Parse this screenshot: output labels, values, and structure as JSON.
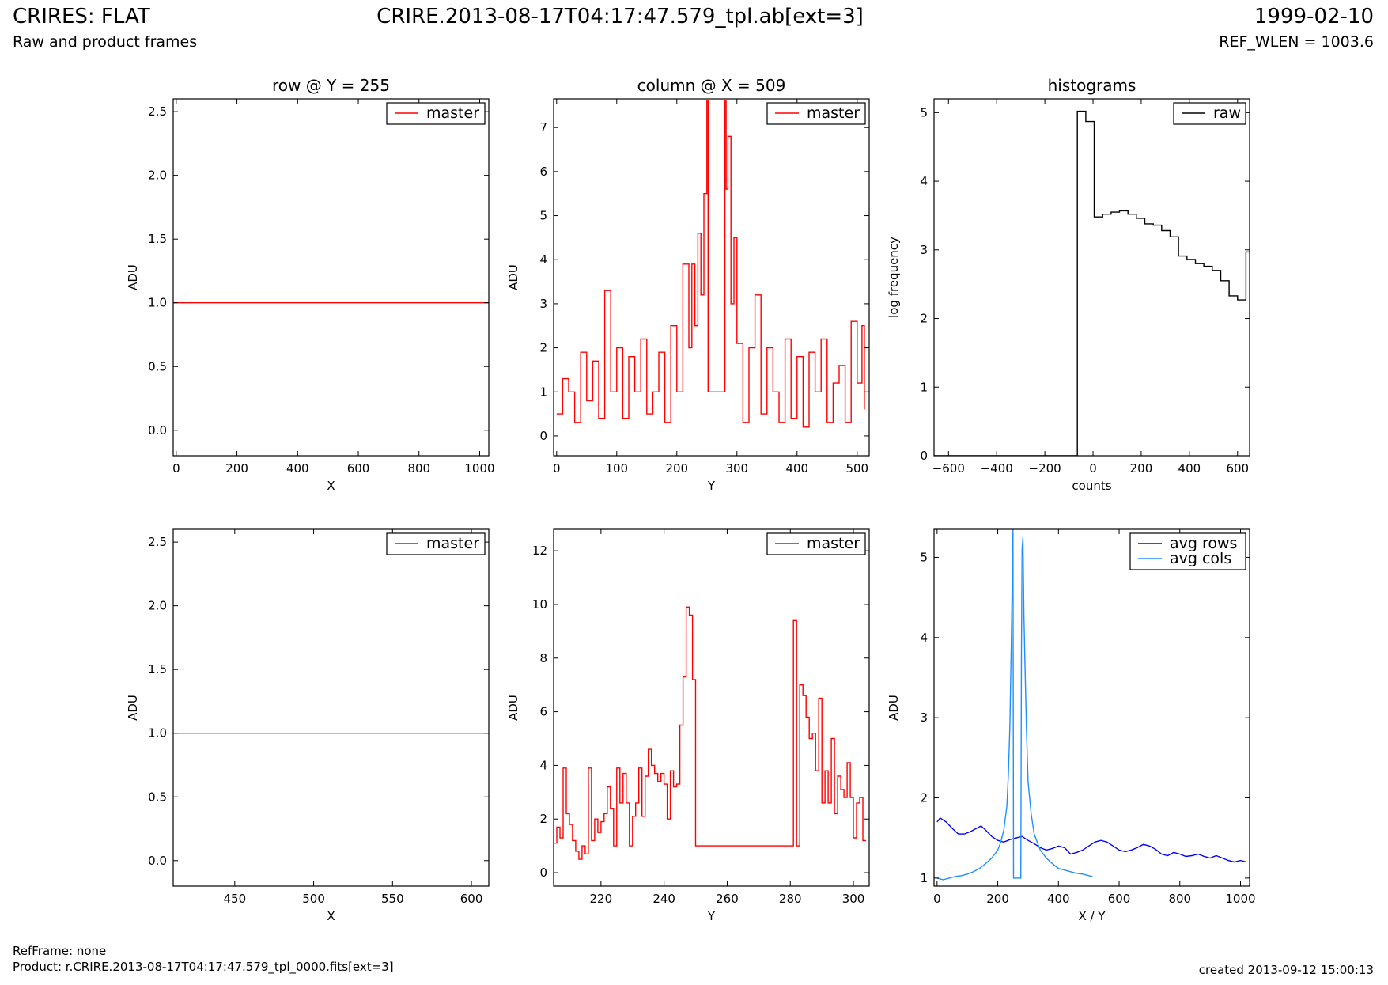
{
  "header": {
    "title": "CRIRES: FLAT",
    "subtitle": "Raw and product frames",
    "file": "CRIRE.2013-08-17T04:17:47.579_tpl.ab[ext=3]",
    "date": "1999-02-10",
    "ref_wlen": "REF_WLEN = 1003.6"
  },
  "footer": {
    "refframe": "RefFrame: none",
    "product": "Product: r.CRIRE.2013-08-17T04:17:47.579_tpl_0000.fits[ext=3]",
    "created": "created 2013-09-12 15:00:13"
  },
  "colors": {
    "master": "#ff0000",
    "raw": "#000000",
    "avg_rows": "#0000ff",
    "avg_cols": "#1e90ff"
  },
  "chart_data": [
    {
      "type": "line",
      "title": "row @ Y = 255",
      "xlabel": "X",
      "ylabel": "ADU",
      "xlim": [
        -10,
        1030
      ],
      "ylim": [
        -0.2,
        2.6
      ],
      "xticks": [
        0,
        200,
        400,
        600,
        800,
        1000
      ],
      "yticks": [
        0.0,
        0.5,
        1.0,
        1.5,
        2.0,
        2.5
      ],
      "ytick_labels": [
        "0.0",
        "0.5",
        "1.0",
        "1.5",
        "2.0",
        "2.5"
      ],
      "legend": "top-right",
      "series": [
        {
          "name": "master",
          "color": "#ff0000",
          "x": [
            -10,
            1030
          ],
          "y": [
            1.0,
            1.0
          ]
        }
      ]
    },
    {
      "type": "line",
      "title": "column @ X = 509",
      "xlabel": "Y",
      "ylabel": "ADU",
      "xlim": [
        -5,
        520
      ],
      "ylim": [
        -0.45,
        7.65
      ],
      "xticks": [
        0,
        100,
        200,
        300,
        400,
        500
      ],
      "yticks": [
        0,
        1,
        2,
        3,
        4,
        5,
        6,
        7
      ],
      "legend": "top-right",
      "series": [
        {
          "name": "master",
          "color": "#ff0000",
          "step": true,
          "x": [
            0,
            10,
            20,
            30,
            40,
            50,
            60,
            70,
            80,
            90,
            100,
            110,
            120,
            130,
            140,
            150,
            160,
            170,
            180,
            190,
            200,
            210,
            220,
            225,
            230,
            235,
            240,
            245,
            250,
            252,
            260,
            270,
            280,
            282,
            285,
            290,
            295,
            300,
            310,
            320,
            330,
            340,
            350,
            360,
            370,
            380,
            390,
            400,
            410,
            420,
            430,
            440,
            450,
            460,
            470,
            480,
            490,
            500,
            508,
            512
          ],
          "y": [
            0.5,
            1.3,
            1.0,
            0.3,
            1.9,
            0.8,
            1.7,
            0.4,
            3.3,
            1.0,
            2.0,
            0.4,
            1.8,
            1.0,
            2.2,
            0.5,
            1.0,
            1.9,
            0.3,
            2.5,
            1.0,
            3.9,
            2.0,
            3.9,
            2.5,
            4.6,
            3.2,
            5.5,
            7.6,
            1.0,
            1.0,
            1.0,
            7.6,
            5.6,
            6.8,
            3.0,
            4.5,
            2.1,
            0.3,
            2.0,
            3.2,
            0.5,
            2.0,
            1.0,
            0.3,
            2.2,
            0.4,
            1.8,
            0.2,
            1.9,
            1.0,
            2.2,
            0.3,
            1.2,
            1.6,
            0.3,
            2.6,
            1.2,
            2.5,
            0.6
          ]
        }
      ]
    },
    {
      "type": "line",
      "title": "histograms",
      "xlabel": "counts",
      "ylabel": "log frequency",
      "xlim": [
        -660,
        650
      ],
      "ylim": [
        0,
        5.2
      ],
      "xticks": [
        -600,
        -400,
        -200,
        0,
        200,
        400,
        600
      ],
      "xtick_labels": [
        "−600",
        "−400",
        "−200",
        "0",
        "200",
        "400",
        "600"
      ],
      "yticks": [
        0,
        1,
        2,
        3,
        4,
        5
      ],
      "legend": "top-right",
      "series": [
        {
          "name": "raw",
          "color": "#000000",
          "step": true,
          "x": [
            -660,
            -65,
            -65,
            -30,
            5,
            40,
            75,
            110,
            145,
            180,
            215,
            250,
            285,
            320,
            355,
            390,
            425,
            460,
            495,
            530,
            565,
            600,
            635,
            650
          ],
          "y": [
            0,
            0,
            5.02,
            4.87,
            3.48,
            3.52,
            3.55,
            3.57,
            3.52,
            3.46,
            3.38,
            3.36,
            3.28,
            3.19,
            2.91,
            2.86,
            2.8,
            2.76,
            2.7,
            2.55,
            2.33,
            2.27,
            2.97,
            2.97
          ]
        }
      ]
    },
    {
      "type": "line",
      "title": "",
      "xlabel": "X",
      "ylabel": "ADU",
      "xlim": [
        411,
        611
      ],
      "ylim": [
        -0.2,
        2.6
      ],
      "xticks": [
        450,
        500,
        550,
        600
      ],
      "yticks": [
        0.0,
        0.5,
        1.0,
        1.5,
        2.0,
        2.5
      ],
      "ytick_labels": [
        "0.0",
        "0.5",
        "1.0",
        "1.5",
        "2.0",
        "2.5"
      ],
      "legend": "top-right",
      "series": [
        {
          "name": "master",
          "color": "#ff0000",
          "x": [
            411,
            611
          ],
          "y": [
            1.0,
            1.0
          ]
        }
      ]
    },
    {
      "type": "line",
      "title": "",
      "xlabel": "Y",
      "ylabel": "ADU",
      "xlim": [
        205,
        305
      ],
      "ylim": [
        -0.5,
        12.8
      ],
      "xticks": [
        220,
        240,
        260,
        280,
        300
      ],
      "yticks": [
        0,
        2,
        4,
        6,
        8,
        10,
        12
      ],
      "legend": "top-right",
      "series": [
        {
          "name": "master",
          "color": "#ff0000",
          "step": true,
          "x": [
            205,
            206,
            207,
            208,
            209,
            210,
            211,
            212,
            213,
            214,
            215,
            216,
            217,
            218,
            219,
            220,
            221,
            222,
            223,
            224,
            225,
            226,
            227,
            228,
            229,
            230,
            231,
            232,
            233,
            234,
            235,
            236,
            237,
            238,
            239,
            240,
            241,
            242,
            243,
            244,
            245,
            246,
            247,
            248,
            249,
            250,
            251,
            252,
            281,
            282,
            283,
            284,
            285,
            286,
            287,
            288,
            289,
            290,
            291,
            292,
            293,
            294,
            295,
            296,
            297,
            298,
            299,
            300,
            301,
            302,
            303,
            304
          ],
          "y": [
            1.1,
            1.7,
            1.3,
            3.9,
            2.2,
            1.8,
            1.2,
            0.8,
            0.5,
            1.0,
            0.7,
            3.9,
            1.2,
            2.0,
            1.5,
            1.9,
            2.2,
            3.2,
            2.4,
            1.0,
            3.9,
            2.6,
            3.7,
            2.6,
            1.0,
            2.1,
            2.6,
            3.9,
            2.1,
            3.6,
            4.6,
            4.0,
            3.7,
            3.4,
            3.7,
            3.3,
            2.0,
            3.8,
            3.2,
            3.3,
            5.5,
            7.3,
            9.9,
            9.6,
            7.2,
            1.0,
            1.0,
            1.0,
            9.4,
            1.0,
            7.0,
            6.6,
            5.8,
            5.0,
            5.2,
            3.8,
            6.5,
            2.6,
            3.8,
            2.6,
            5.0,
            2.2,
            3.6,
            3.1,
            2.8,
            4.1,
            2.8,
            1.3,
            2.6,
            2.8,
            1.2,
            1.2
          ]
        }
      ]
    },
    {
      "type": "line",
      "title": "",
      "xlabel": "X / Y",
      "ylabel": "ADU",
      "xlim": [
        -10,
        1030
      ],
      "ylim": [
        0.9,
        5.35
      ],
      "xticks": [
        0,
        200,
        400,
        600,
        800,
        1000
      ],
      "yticks": [
        1,
        2,
        3,
        4,
        5
      ],
      "legend": "top-right",
      "series": [
        {
          "name": "avg rows",
          "color": "#0000ff",
          "x": [
            0,
            10,
            30,
            50,
            70,
            90,
            110,
            130,
            145,
            160,
            180,
            200,
            220,
            240,
            260,
            280,
            300,
            320,
            340,
            360,
            380,
            400,
            420,
            440,
            460,
            480,
            500,
            520,
            540,
            560,
            580,
            600,
            620,
            640,
            660,
            680,
            700,
            720,
            740,
            760,
            780,
            800,
            820,
            840,
            860,
            880,
            900,
            920,
            940,
            960,
            980,
            1000,
            1020
          ],
          "y": [
            1.7,
            1.75,
            1.7,
            1.62,
            1.55,
            1.55,
            1.58,
            1.62,
            1.65,
            1.6,
            1.52,
            1.47,
            1.45,
            1.48,
            1.5,
            1.52,
            1.47,
            1.43,
            1.38,
            1.35,
            1.37,
            1.4,
            1.38,
            1.3,
            1.32,
            1.35,
            1.4,
            1.45,
            1.47,
            1.45,
            1.4,
            1.35,
            1.33,
            1.35,
            1.38,
            1.42,
            1.4,
            1.36,
            1.3,
            1.28,
            1.32,
            1.3,
            1.27,
            1.28,
            1.3,
            1.27,
            1.25,
            1.28,
            1.25,
            1.22,
            1.2,
            1.22,
            1.2
          ]
        },
        {
          "name": "avg cols",
          "color": "#1e90ff",
          "x": [
            0,
            20,
            40,
            60,
            80,
            100,
            120,
            140,
            160,
            180,
            200,
            210,
            220,
            230,
            235,
            240,
            245,
            250,
            252,
            276,
            278,
            280,
            283,
            286,
            290,
            295,
            300,
            310,
            320,
            330,
            340,
            360,
            380,
            400,
            420,
            440,
            460,
            480,
            500,
            512
          ],
          "y": [
            1.0,
            0.98,
            1.0,
            1.02,
            1.03,
            1.05,
            1.08,
            1.12,
            1.18,
            1.25,
            1.35,
            1.45,
            1.6,
            1.9,
            2.3,
            2.9,
            4.0,
            5.35,
            1.0,
            1.0,
            3.8,
            5.1,
            5.25,
            4.3,
            3.6,
            2.8,
            2.2,
            1.8,
            1.55,
            1.45,
            1.35,
            1.25,
            1.18,
            1.12,
            1.1,
            1.08,
            1.06,
            1.05,
            1.03,
            1.02
          ]
        }
      ]
    }
  ]
}
